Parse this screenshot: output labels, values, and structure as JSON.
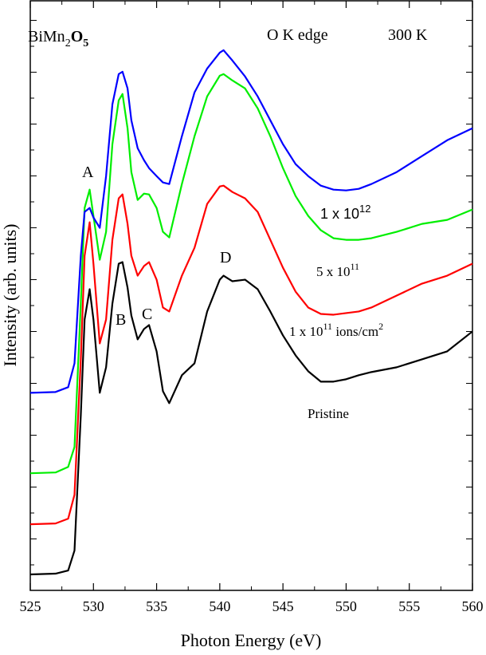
{
  "chart_data": {
    "type": "line",
    "title_parts": [
      "BiMn",
      "2",
      "O",
      "5"
    ],
    "edge": "O K edge",
    "temperature": "300 K",
    "xlabel": "Photon Energy (eV)",
    "ylabel": "Intensity (arb. units)",
    "peaks": [
      "A",
      "B",
      "C",
      "D"
    ],
    "dose_labels": [
      {
        "base": "1 x 10",
        "sup": "12"
      },
      {
        "base": "5 x 10",
        "sup": "11"
      },
      {
        "base": "1 x 10",
        "sup": "11",
        "suffix": " ions/cm",
        "sup2": "2"
      }
    ],
    "pristine": "Pristine",
    "xlim": [
      525,
      560
    ],
    "xticks": [
      525,
      530,
      535,
      540,
      545,
      550,
      555,
      560
    ],
    "ylim": [
      0,
      740
    ],
    "x": [
      525,
      527,
      528,
      528.5,
      529,
      529.3,
      529.7,
      530,
      530.5,
      531,
      531.5,
      532,
      532.3,
      532.7,
      533,
      533.5,
      534,
      534.4,
      535,
      535.5,
      536,
      537,
      538,
      539,
      540,
      540.3,
      541,
      542,
      543,
      544,
      545,
      546,
      547,
      548,
      549,
      550,
      551,
      552,
      554,
      556,
      558,
      560
    ],
    "series": [
      {
        "color": "#000000",
        "values": [
          20,
          21,
          25,
          50,
          220,
          340,
          378,
          340,
          248,
          280,
          360,
          410,
          412,
          380,
          345,
          315,
          328,
          333,
          300,
          250,
          235,
          270,
          285,
          350,
          390,
          395,
          388,
          390,
          378,
          350,
          320,
          295,
          275,
          262,
          262,
          265,
          270,
          274,
          280,
          290,
          300,
          325
        ]
      },
      {
        "color": "#ff0000",
        "values": [
          83,
          84,
          90,
          120,
          290,
          420,
          462,
          410,
          310,
          340,
          440,
          492,
          497,
          460,
          420,
          395,
          407,
          412,
          390,
          355,
          350,
          395,
          430,
          485,
          507,
          508,
          500,
          492,
          475,
          440,
          405,
          375,
          355,
          347,
          346,
          348,
          350,
          355,
          370,
          385,
          395,
          410
        ]
      },
      {
        "color": "#00ee00",
        "values": [
          147,
          148,
          155,
          180,
          360,
          480,
          503,
          470,
          415,
          450,
          560,
          615,
          623,
          580,
          525,
          490,
          498,
          497,
          480,
          450,
          443,
          510,
          570,
          620,
          646,
          648,
          640,
          630,
          605,
          570,
          530,
          495,
          470,
          452,
          442,
          440,
          440,
          442,
          450,
          460,
          465,
          478
        ]
      },
      {
        "color": "#0000ff",
        "values": [
          248,
          249,
          255,
          285,
          420,
          475,
          480,
          468,
          455,
          520,
          610,
          648,
          651,
          630,
          590,
          555,
          540,
          530,
          520,
          512,
          510,
          570,
          625,
          655,
          675,
          678,
          665,
          645,
          620,
          590,
          560,
          535,
          520,
          508,
          503,
          502,
          504,
          510,
          525,
          545,
          565,
          580
        ]
      }
    ]
  }
}
